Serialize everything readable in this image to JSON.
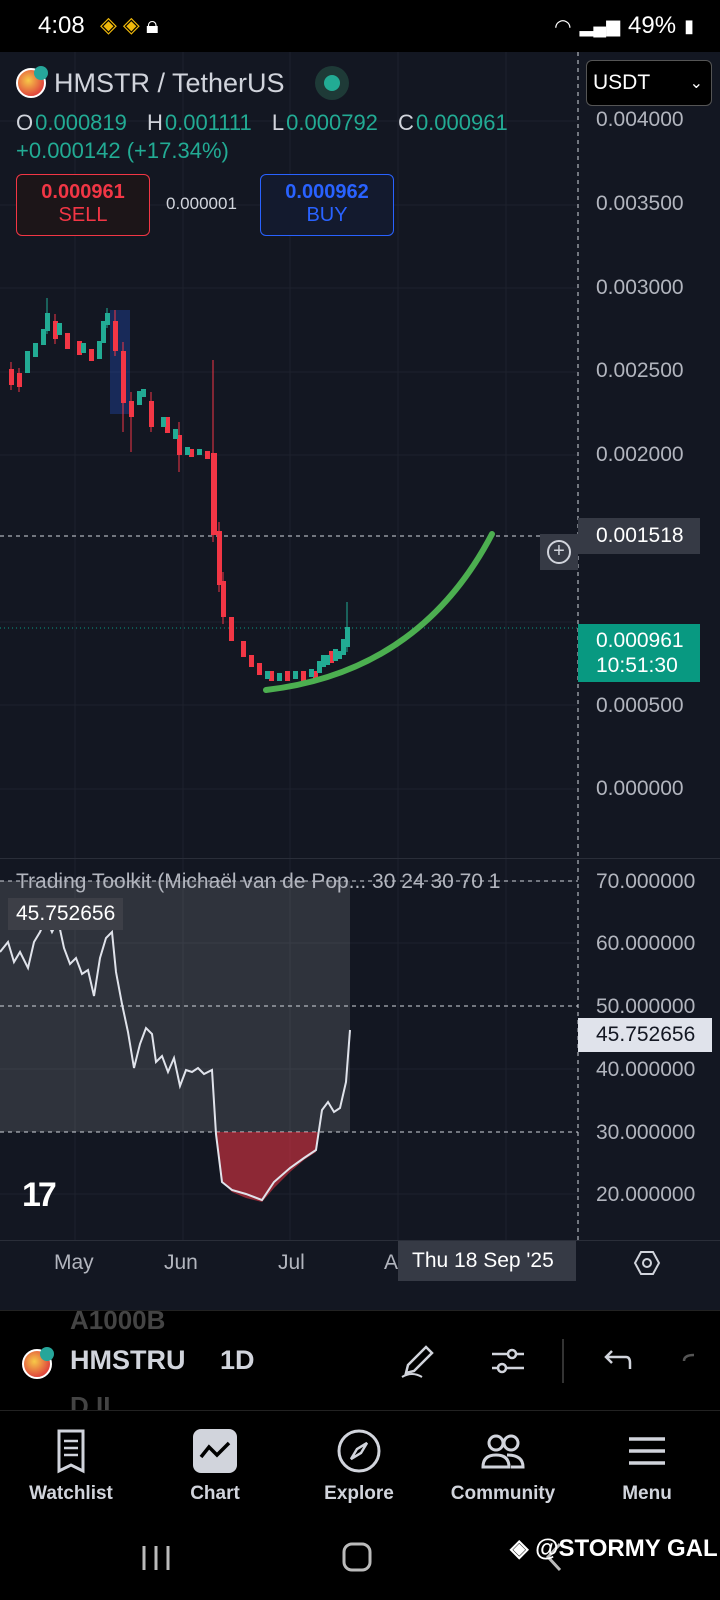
{
  "status_bar": {
    "time": "4:08",
    "battery": "49%"
  },
  "header": {
    "symbol": "HMSTR / TetherUS",
    "currency": "USDT",
    "ohlc": {
      "o_label": "O",
      "o": "0.000819",
      "h_label": "H",
      "h": "0.001111",
      "l_label": "L",
      "l": "0.000792",
      "c_label": "C",
      "c": "0.000961"
    },
    "change": "+0.000142 (+17.34%)",
    "sell_price": "0.000961",
    "sell_label": "SELL",
    "spread": "0.000001",
    "buy_price": "0.000962",
    "buy_label": "BUY"
  },
  "price_axis": [
    "0.004000",
    "0.003500",
    "0.003000",
    "0.002500",
    "0.002000",
    "0.000500",
    "0.000000"
  ],
  "crosshair_price": "0.001518",
  "last_price": {
    "price": "0.000961",
    "countdown": "10:51:30"
  },
  "indicator": {
    "title": "Trading Toolkit (Michaël van de Pop... 30 24 30 70 1",
    "value": "45.752656",
    "axis": [
      "70.000000",
      "60.000000",
      "50.000000",
      "40.000000",
      "30.000000",
      "20.000000"
    ],
    "current_tag": "45.752656"
  },
  "time_axis": {
    "labels": [
      "May",
      "Jun",
      "Jul",
      "A"
    ],
    "crosshair_date": "Thu 18 Sep '25"
  },
  "toolbar": {
    "ghost_top": "A1000B",
    "ghost_bottom": "D.II",
    "symbol": "HMSTRU",
    "interval": "1D"
  },
  "bottom_nav": {
    "watchlist": "Watchlist",
    "chart": "Chart",
    "explore": "Explore",
    "community": "Community",
    "menu": "Menu"
  },
  "watermark": "@STORMY GAL",
  "colors": {
    "up": "#22ab94",
    "down": "#f23645",
    "buy": "#2962ff",
    "background": "#131722"
  }
}
